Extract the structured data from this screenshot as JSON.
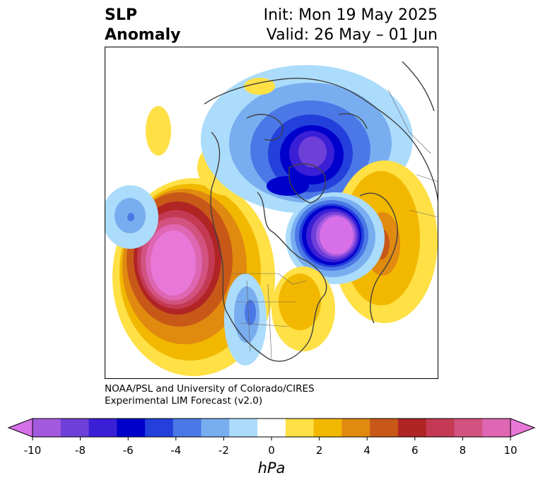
{
  "title": {
    "left_line1": "SLP",
    "left_line2": "Anomaly",
    "right_line1": "Init: Mon 19 May 2025",
    "right_line2": "Valid: 26 May – 01 Jun"
  },
  "credit": {
    "line1": "NOAA/PSL and University of Colorado/CIRES",
    "line2": "Experimental LIM Forecast (v2.0)"
  },
  "colorbar": {
    "unit": "hPa",
    "ticks": [
      "-10",
      "-8",
      "-6",
      "-4",
      "-2",
      "0",
      "2",
      "4",
      "6",
      "8",
      "10"
    ],
    "colors": [
      "#d770e8",
      "#a35adf",
      "#6f3fd9",
      "#3a1fd6",
      "#0000cc",
      "#2340dc",
      "#4b78e6",
      "#78aef0",
      "#acdcfb",
      "#ffffff",
      "#ffe045",
      "#f2b800",
      "#e08a10",
      "#c85818",
      "#b02424",
      "#c43a54",
      "#d25280",
      "#df66b2",
      "#e878d8"
    ]
  },
  "anomaly_colors": {
    "neg_light": "#acdcfb",
    "neg_2": "#78aef0",
    "neg_3": "#4b78e6",
    "neg_4": "#2340dc",
    "neg_5": "#0000cc",
    "neg_6": "#3a1fd6",
    "neg_7": "#6f3fd9",
    "neg_8": "#a35adf",
    "neg_9": "#d770e8",
    "pos_1": "#ffe045",
    "pos_2": "#f2b800",
    "pos_3": "#e08a10",
    "pos_4": "#c85818",
    "pos_5": "#b02424",
    "pos_6": "#c43a54",
    "pos_7": "#d25280",
    "pos_8": "#df66b2",
    "pos_9": "#e878d8"
  }
}
